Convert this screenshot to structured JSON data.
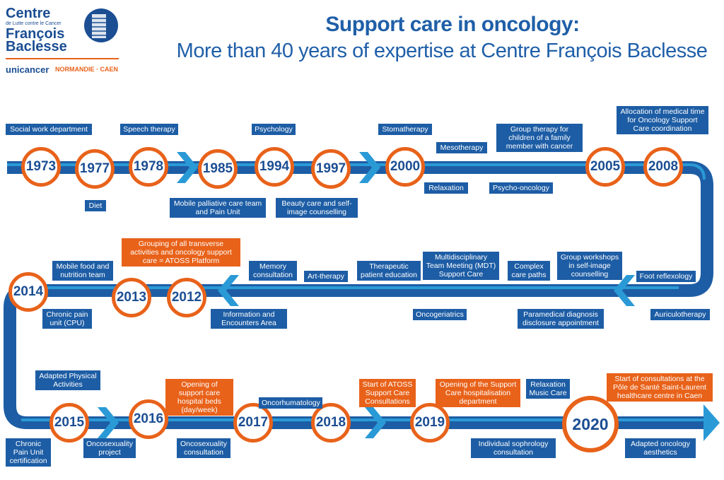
{
  "title": "Support care in oncology:",
  "subtitle": "More than 40 years of expertise at Centre François Baclesse",
  "logo": {
    "line1": "Centre",
    "line2": "de Lutte contre le Cancer",
    "line3": "François",
    "line4": "Baclesse",
    "network": "unicancer",
    "region": "NORMANDIE · CAEN"
  },
  "colors": {
    "blue": "#1d5da5",
    "orange": "#e8621a",
    "light_blue": "#2a9ad6"
  },
  "years": [
    "1973",
    "1977",
    "1978",
    "1985",
    "1994",
    "1997",
    "2000",
    "2005",
    "2008",
    "2012",
    "2013",
    "2014",
    "2015",
    "2016",
    "2017",
    "2018",
    "2019",
    "2020"
  ],
  "labels": {
    "social_work": "Social work department",
    "speech_therapy": "Speech therapy",
    "diet": "Diet",
    "palliative": "Mobile palliative care team and Pain Unit",
    "psychology": "Psychology",
    "beauty_care": "Beauty care and self-image counselling",
    "stomatherapy": "Stomatherapy",
    "mesotherapy": "Mesotherapy",
    "relaxation": "Relaxation",
    "group_therapy": "Group therapy for children of a family member with cancer",
    "psycho_oncology": "Psycho-oncology",
    "allocation": "Allocation of medical time for Oncology Support Care coordination",
    "foot_reflexology": "Foot reflexology",
    "auriculotherapy": "Auriculotherapy",
    "group_workshops": "Group workshops in self-image counselling",
    "paramedical": "Paramedical diagnosis disclosure appointment",
    "complex_paths": "Complex care paths",
    "mdt": "Multidisciplinary Team Meeting (MDT) Support Care",
    "oncogeriatrics": "Oncogeriatrics",
    "therapeutic_education": "Therapeutic patient education",
    "art_therapy": "Art-therapy",
    "memory": "Memory consultation",
    "information_area": "Information and Encounters Area",
    "atoss_platform": "Grouping of all transverse activities and oncology support care = ATOSS Platform",
    "mobile_food": "Mobile food and nutrition team",
    "chronic_pain": "Chronic pain unit (CPU)",
    "adapted_physical": "Adapted Physical Activities",
    "cpu_certification": "Chronic Pain Unit certification",
    "oncosexuality_project": "Oncosexuality project",
    "support_beds": "Opening of support care hospital beds (day/week)",
    "oncosexuality_consult": "Oncosexuality consultation",
    "oncorhumatology": "Oncorhumatology",
    "atoss_consult": "Start of ATOSS Support Care Consultations",
    "hospitalisation_dept": "Opening of the Support Care hospitalisation department",
    "sophrology": "Individual sophrology consultation",
    "relaxation_music": "Relaxation Music Care",
    "saint_laurent": "Start of consultations at the Pôle de Santé Saint-Laurent healthcare centre in Caen",
    "adapted_aesthetics": "Adapted oncology aesthetics"
  }
}
